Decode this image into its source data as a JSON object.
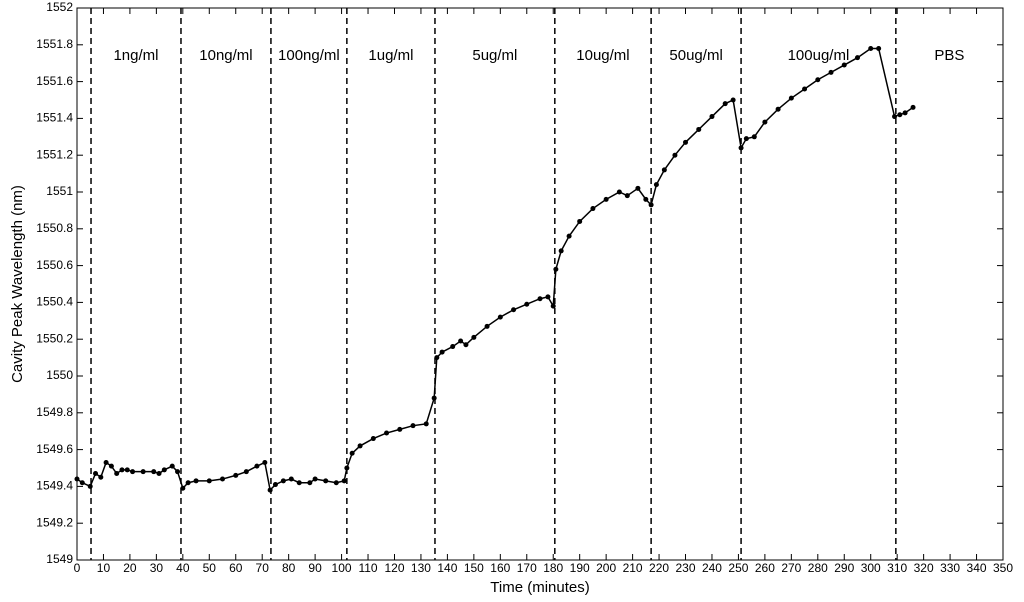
{
  "chart_data": {
    "type": "line",
    "x_label": "Time (minutes)",
    "y_label": "Cavity Peak Wavelength (nm)",
    "xlim": [
      0,
      350
    ],
    "xticks": [
      0,
      10,
      20,
      30,
      40,
      50,
      60,
      70,
      80,
      90,
      100,
      110,
      120,
      130,
      140,
      150,
      160,
      170,
      180,
      190,
      200,
      210,
      220,
      230,
      240,
      250,
      260,
      270,
      280,
      290,
      300,
      310,
      320,
      330,
      340,
      350
    ],
    "ylim": [
      1549,
      1552
    ],
    "yticks": [
      1549,
      1549.2,
      1549.4,
      1549.6,
      1549.8,
      1550,
      1550.2,
      1550.4,
      1550.6,
      1550.8,
      1551,
      1551.2,
      1551.4,
      1551.6,
      1551.8,
      1552
    ],
    "dividers": [
      5.3,
      39.3,
      73.3,
      102,
      135.3,
      180.6,
      217,
      251,
      309.5
    ],
    "regions": [
      "1ng/ml",
      "10ng/ml",
      "100ng/ml",
      "1ug/ml",
      "5ug/ml",
      "10ug/ml",
      "50ug/ml",
      "100ug/ml",
      "PBS"
    ],
    "series": [
      {
        "color": "#000000",
        "x": [
          0,
          2,
          5,
          7,
          9,
          11,
          13,
          15,
          17,
          19,
          21,
          25,
          29,
          31,
          33,
          36,
          38,
          40,
          42,
          45,
          50,
          55,
          60,
          64,
          68,
          71,
          73,
          75,
          78,
          81,
          84,
          88,
          90,
          94,
          98,
          101,
          102,
          104,
          107,
          112,
          117,
          122,
          127,
          132,
          135,
          136,
          138,
          142,
          145,
          147,
          150,
          155,
          160,
          165,
          170,
          175,
          178,
          180,
          181,
          183,
          186,
          190,
          195,
          200,
          205,
          208,
          212,
          215,
          217,
          219,
          222,
          226,
          230,
          235,
          240,
          245,
          248,
          251,
          253,
          256,
          260,
          265,
          270,
          275,
          280,
          285,
          290,
          295,
          300,
          303,
          309,
          311,
          313,
          316
        ],
        "values": [
          1549.44,
          1549.42,
          1549.4,
          1549.47,
          1549.45,
          1549.53,
          1549.51,
          1549.47,
          1549.49,
          1549.49,
          1549.48,
          1549.48,
          1549.48,
          1549.47,
          1549.49,
          1549.51,
          1549.48,
          1549.39,
          1549.42,
          1549.43,
          1549.43,
          1549.44,
          1549.46,
          1549.48,
          1549.51,
          1549.53,
          1549.38,
          1549.41,
          1549.43,
          1549.44,
          1549.42,
          1549.42,
          1549.44,
          1549.43,
          1549.42,
          1549.43,
          1549.5,
          1549.58,
          1549.62,
          1549.66,
          1549.69,
          1549.71,
          1549.73,
          1549.74,
          1549.88,
          1550.1,
          1550.13,
          1550.16,
          1550.19,
          1550.17,
          1550.21,
          1550.27,
          1550.32,
          1550.36,
          1550.39,
          1550.42,
          1550.43,
          1550.38,
          1550.58,
          1550.68,
          1550.76,
          1550.84,
          1550.91,
          1550.96,
          1551.0,
          1550.98,
          1551.02,
          1550.96,
          1550.93,
          1551.04,
          1551.12,
          1551.2,
          1551.27,
          1551.34,
          1551.41,
          1551.48,
          1551.5,
          1551.24,
          1551.29,
          1551.3,
          1551.38,
          1551.45,
          1551.51,
          1551.56,
          1551.61,
          1551.65,
          1551.69,
          1551.73,
          1551.78,
          1551.78,
          1551.41,
          1551.42,
          1551.43,
          1551.46
        ]
      }
    ]
  }
}
